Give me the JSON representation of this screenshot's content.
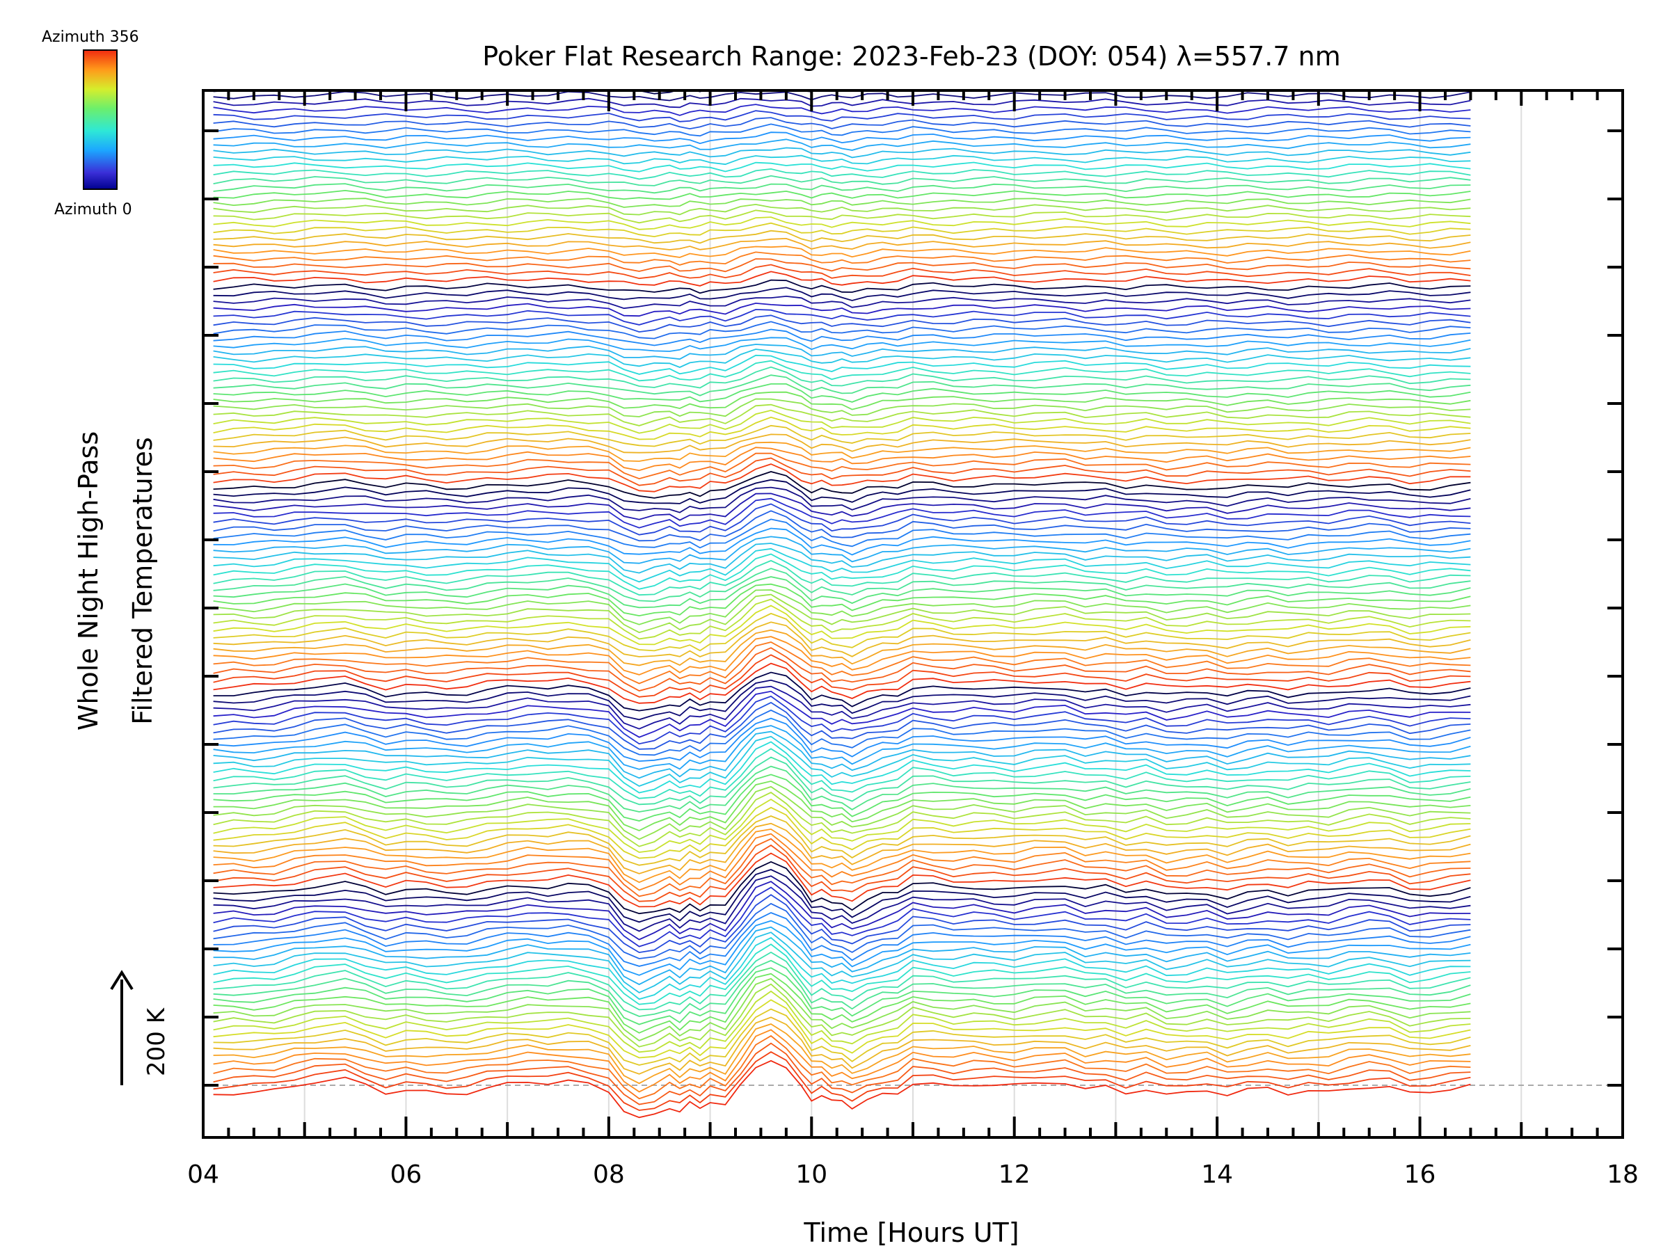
{
  "chart_data": {
    "type": "line",
    "title": "Poker Flat Research Range: 2023-Feb-23 (DOY: 054) λ=557.7 nm",
    "xlabel": "Time [Hours UT]",
    "ylabel_line1": "Whole Night High-Pass",
    "ylabel_line2": "Filtered Temperatures",
    "xlim": [
      4,
      18
    ],
    "x_ticks": [
      "04",
      "06",
      "08",
      "10",
      "12",
      "14",
      "16",
      "18"
    ],
    "x_tick_values": [
      4,
      6,
      8,
      10,
      12,
      14,
      16,
      18
    ],
    "y_scale_label": "200 K",
    "colorbar": {
      "top_label": "Azimuth 356",
      "bottom_label": "Azimuth 0",
      "min": 0,
      "max": 356,
      "colormap": "rainbow (blue → red)"
    },
    "series_count": 142,
    "stack_groups": 5,
    "vertical_grid": true,
    "time_range": [
      4.1,
      16.5
    ],
    "baseline_dashed": true,
    "profile": {
      "x": [
        4.1,
        4.3,
        4.5,
        4.7,
        4.9,
        5.1,
        5.4,
        5.6,
        5.8,
        6.0,
        6.2,
        6.4,
        6.6,
        6.8,
        7.0,
        7.2,
        7.4,
        7.6,
        7.8,
        8.0,
        8.15,
        8.3,
        8.45,
        8.6,
        8.7,
        8.8,
        8.9,
        9.0,
        9.15,
        9.3,
        9.45,
        9.6,
        9.75,
        9.9,
        10.0,
        10.1,
        10.2,
        10.3,
        10.4,
        10.55,
        10.7,
        10.85,
        11.0,
        11.2,
        11.4,
        11.6,
        11.8,
        12.0,
        12.2,
        12.5,
        12.7,
        12.9,
        13.1,
        13.3,
        13.5,
        13.7,
        13.9,
        14.1,
        14.3,
        14.5,
        14.7,
        14.9,
        15.1,
        15.3,
        15.5,
        15.7,
        15.9,
        16.1,
        16.3,
        16.5
      ],
      "y": [
        -15,
        -10,
        -12,
        -8,
        8,
        20,
        30,
        10,
        -12,
        0,
        -8,
        -14,
        -10,
        2,
        12,
        20,
        16,
        22,
        14,
        -5,
        -70,
        -100,
        -85,
        -60,
        -80,
        -55,
        -70,
        -45,
        -60,
        10,
        80,
        105,
        70,
        10,
        -35,
        -25,
        -50,
        -45,
        -65,
        -40,
        -20,
        -10,
        25,
        18,
        8,
        15,
        10,
        5,
        15,
        22,
        0,
        8,
        -10,
        5,
        -20,
        -15,
        -5,
        -25,
        -10,
        0,
        -15,
        -5,
        -10,
        5,
        12,
        5,
        -18,
        -12,
        -5,
        5
      ]
    }
  }
}
